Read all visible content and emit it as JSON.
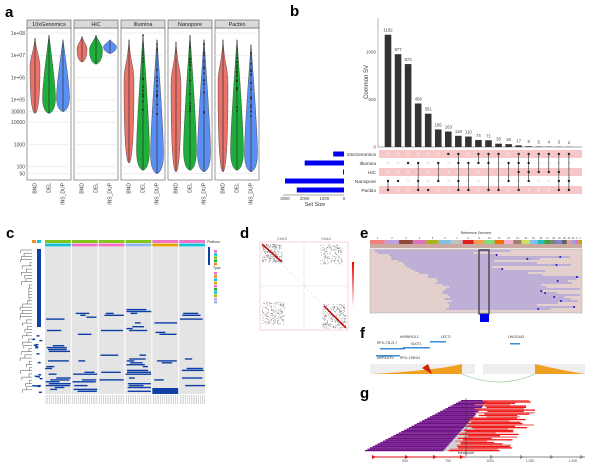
{
  "panel_labels": [
    "a",
    "b",
    "c",
    "d",
    "e",
    "f",
    "g"
  ],
  "chart_data": [
    {
      "panel": "a",
      "type": "violin",
      "facets": [
        "10xGenomics",
        "HiC",
        "Illumina",
        "Nanopore",
        "Pacbio"
      ],
      "categories": [
        "BND",
        "DEL",
        "INS_DUP"
      ],
      "yscale": "log",
      "yticks": [
        {
          "v": 100000000.0,
          "label": "1e+08"
        },
        {
          "v": 10000000.0,
          "label": "1e+07"
        },
        {
          "v": 1000000.0,
          "label": "1e+06"
        },
        {
          "v": 100000.0,
          "label": "1e+05"
        },
        {
          "v": 30000,
          "label": "30000"
        },
        {
          "v": 10000,
          "label": "10000"
        },
        {
          "v": 1000,
          "label": "1000"
        },
        {
          "v": 100,
          "label": "100"
        },
        {
          "v": 50,
          "label": "50"
        }
      ],
      "ranges": {
        "10xGenomics": {
          "BND": [
            25000,
            60000000.0
          ],
          "DEL": [
            25000,
            80000000.0
          ],
          "INS_DUP": [
            30000,
            50000000.0
          ]
        },
        "HiC": {
          "BND": [
            5000000.0,
            70000000.0
          ],
          "DEL": [
            4000000.0,
            80000000.0
          ],
          "INS_DUP": [
            12000000.0,
            50000000.0
          ]
        },
        "Illumina": {
          "BND": [
            150,
            50000000.0
          ],
          "DEL": [
            70,
            80000000.0
          ],
          "INS_DUP": [
            50,
            50000000.0
          ]
        },
        "Nanopore": {
          "BND": [
            60,
            40000000.0
          ],
          "DEL": [
            70,
            80000000.0
          ],
          "INS_DUP": [
            60,
            50000000.0
          ]
        },
        "Pacbio": {
          "BND": [
            60,
            50000000.0
          ],
          "DEL": [
            70,
            50000000.0
          ],
          "INS_DUP": [
            60,
            30000000.0
          ]
        }
      },
      "colors": {
        "BND": "#e8736b",
        "DEL": "#1fad3c",
        "INS_DUP": "#5b8ff2"
      },
      "grid": true
    },
    {
      "panel": "b",
      "type": "upset",
      "ylabel": "Common SV",
      "yticks": [
        0,
        500,
        1000
      ],
      "intersection_sizes": [
        1182,
        977,
        873,
        458,
        351,
        185,
        163,
        118,
        110,
        74,
        71,
        35,
        30,
        17,
        8,
        5,
        4,
        3,
        2
      ],
      "sets": [
        "10xGenomics",
        "Illumina",
        "HiC",
        "Nanopore",
        "Pacbio"
      ],
      "set_sizes": [
        550,
        2000,
        50,
        3000,
        2400
      ],
      "set_size_label": "Set Size",
      "set_size_ticks": [
        3000,
        2000,
        1000,
        0
      ],
      "membership": [
        [
          "Nanopore",
          "Pacbio"
        ],
        [
          "Nanopore"
        ],
        [
          "Illumina"
        ],
        [
          "Illumina",
          "Nanopore",
          "Pacbio"
        ],
        [
          "Pacbio"
        ],
        [
          "Illumina",
          "Nanopore"
        ],
        [
          "10xGenomics"
        ],
        [
          "10xGenomics",
          "Illumina",
          "Nanopore",
          "Pacbio"
        ],
        [
          "Illumina",
          "Pacbio"
        ],
        [
          "10xGenomics",
          "Illumina"
        ],
        [
          "10xGenomics",
          "Illumina",
          "Pacbio"
        ],
        [
          "10xGenomics",
          "Pacbio"
        ],
        [
          "Illumina",
          "Nanopore"
        ],
        [
          "10xGenomics",
          "Illumina",
          "HiC",
          "Pacbio"
        ],
        [
          "10xGenomics",
          "Illumina",
          "HiC",
          "Nanopore"
        ],
        [
          "10xGenomics",
          "HiC"
        ],
        [
          "10xGenomics",
          "HiC"
        ],
        [
          "10xGenomics",
          "HiC",
          "Nanopore",
          "Pacbio"
        ],
        [
          "10xGenomics",
          "Nanopore",
          "Pacbio"
        ]
      ],
      "bar_color": "#333333",
      "set_bar_color": "#0000ee",
      "stripe_color": "#f7c6c6"
    }
  ],
  "panel_c": {
    "legend_titles": [
      "Platform",
      "Type"
    ],
    "heatmap_color": "#0d3fa6",
    "bg_color": "#e4e4e4"
  },
  "panel_d": {
    "titles": [
      "Chr13",
      "Chr14"
    ]
  },
  "panel_e": {
    "title": "Reference Genome",
    "chromosomes": [
      "1",
      "2",
      "3",
      "4",
      "5",
      "6",
      "7",
      "8",
      "9",
      "10",
      "11",
      "12",
      "13",
      "14",
      "15",
      "16",
      "17",
      "18",
      "19",
      "20",
      "21",
      "22",
      "X",
      "Y"
    ]
  },
  "panel_f": {
    "genes": [
      "HNRNPA1L2",
      "LECT1",
      "RP11-75L21.7",
      "SUGT1",
      "MRPS31P4",
      "RP11-193H24",
      "LINC01442"
    ]
  },
  "panel_g": {
    "axis_ticks": [
      "500",
      "750",
      "1000",
      "1,250",
      "1,500"
    ],
    "marker": "breakpoint"
  }
}
